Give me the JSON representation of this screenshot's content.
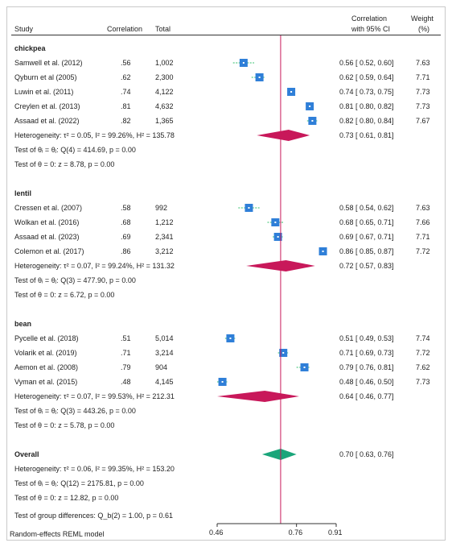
{
  "header": {
    "study": "Study",
    "correlation": "Correlation",
    "total": "Total",
    "ci_line1": "Correlation",
    "ci_line2": "with 95% CI",
    "weight_line1": "Weight",
    "weight_line2": "(%)"
  },
  "footer": "Random-effects REML model",
  "colors": {
    "marker": "#2f7fd8",
    "group_diamond": "#c8185a",
    "overall_diamond": "#1aa57a",
    "reference_line": "#c8185a",
    "ci_whisker": "#2fbf6a"
  },
  "chart_data": {
    "type": "forest",
    "xaxis": {
      "ticks": [
        "0.46",
        "0.76",
        "0.91"
      ],
      "tick_values": [
        0.46,
        0.76,
        0.91
      ]
    },
    "reference_value": 0.7,
    "groups": [
      {
        "name": "chickpea",
        "studies": [
          {
            "study": "Samwell et al. (2012)",
            "r": ".56",
            "total": "1,002",
            "ci_text": "0.56 [ 0.52, 0.60]",
            "weight": "7.63",
            "est": 0.56,
            "lo": 0.52,
            "hi": 0.6
          },
          {
            "study": "Qyburn et al (2005)",
            "r": ".62",
            "total": "2,300",
            "ci_text": "0.62 [ 0.59, 0.64]",
            "weight": "7.71",
            "est": 0.62,
            "lo": 0.59,
            "hi": 0.64
          },
          {
            "study": "Luwin et al. (2011)",
            "r": ".74",
            "total": "4,122",
            "ci_text": "0.74 [ 0.73, 0.75]",
            "weight": "7.73",
            "est": 0.74,
            "lo": 0.73,
            "hi": 0.75
          },
          {
            "study": "Creylen et al. (2013)",
            "r": ".81",
            "total": "4,632",
            "ci_text": "0.81 [ 0.80, 0.82]",
            "weight": "7.73",
            "est": 0.81,
            "lo": 0.8,
            "hi": 0.82
          },
          {
            "study": "Assaad et al. (2022)",
            "r": ".82",
            "total": "1,365",
            "ci_text": "0.82 [ 0.80, 0.84]",
            "weight": "7.67",
            "est": 0.82,
            "lo": 0.8,
            "hi": 0.84
          }
        ],
        "heterogeneity": "Heterogeneity: τ² = 0.05, I² = 99.26%, H² = 135.78",
        "pooled_text": "0.73 [ 0.61, 0.81]",
        "pooled": {
          "est": 0.73,
          "lo": 0.61,
          "hi": 0.81
        },
        "test_equal": "Test of θᵢ = θⱼ: Q(4) = 414.69, p = 0.00",
        "test_zero": "Test of θ = 0: z = 8.78, p = 0.00"
      },
      {
        "name": "lentil",
        "studies": [
          {
            "study": "Cressen et al. (2007)",
            "r": ".58",
            "total": "992",
            "ci_text": "0.58 [ 0.54, 0.62]",
            "weight": "7.63",
            "est": 0.58,
            "lo": 0.54,
            "hi": 0.62
          },
          {
            "study": "Wolkan et al. (2016)",
            "r": ".68",
            "total": "1,212",
            "ci_text": "0.68 [ 0.65, 0.71]",
            "weight": "7.66",
            "est": 0.68,
            "lo": 0.65,
            "hi": 0.71
          },
          {
            "study": "Assaad et al. (2023)",
            "r": ".69",
            "total": "2,341",
            "ci_text": "0.69 [ 0.67, 0.71]",
            "weight": "7.71",
            "est": 0.69,
            "lo": 0.67,
            "hi": 0.71
          },
          {
            "study": "Colemon et al. (2017)",
            "r": ".86",
            "total": "3,212",
            "ci_text": "0.86 [ 0.85, 0.87]",
            "weight": "7.72",
            "est": 0.86,
            "lo": 0.85,
            "hi": 0.87
          }
        ],
        "heterogeneity": "Heterogeneity: τ² = 0.07, I² = 99.24%, H² = 131.32",
        "pooled_text": "0.72 [ 0.57, 0.83]",
        "pooled": {
          "est": 0.72,
          "lo": 0.57,
          "hi": 0.83
        },
        "test_equal": "Test of θᵢ = θⱼ: Q(3) = 477.90, p = 0.00",
        "test_zero": "Test of θ = 0: z = 6.72, p = 0.00"
      },
      {
        "name": "bean",
        "studies": [
          {
            "study": "Pycelle et al. (2018)",
            "r": ".51",
            "total": "5,014",
            "ci_text": "0.51 [ 0.49, 0.53]",
            "weight": "7.74",
            "est": 0.51,
            "lo": 0.49,
            "hi": 0.53
          },
          {
            "study": "Volarik et al. (2019)",
            "r": ".71",
            "total": "3,214",
            "ci_text": "0.71 [ 0.69, 0.73]",
            "weight": "7.72",
            "est": 0.71,
            "lo": 0.69,
            "hi": 0.73
          },
          {
            "study": "Aemon et al. (2008)",
            "r": ".79",
            "total": "904",
            "ci_text": "0.79 [ 0.76, 0.81]",
            "weight": "7.62",
            "est": 0.79,
            "lo": 0.76,
            "hi": 0.81
          },
          {
            "study": "Vyman et al. (2015)",
            "r": ".48",
            "total": "4,145",
            "ci_text": "0.48 [ 0.46, 0.50]",
            "weight": "7.73",
            "est": 0.48,
            "lo": 0.46,
            "hi": 0.5
          }
        ],
        "heterogeneity": "Heterogeneity: τ² = 0.07, I² = 99.53%, H² = 212.31",
        "pooled_text": "0.64 [ 0.46, 0.77]",
        "pooled": {
          "est": 0.64,
          "lo": 0.46,
          "hi": 0.77
        },
        "test_equal": "Test of θᵢ = θⱼ: Q(3) = 443.26, p = 0.00",
        "test_zero": "Test of θ = 0: z = 5.78, p = 0.00"
      }
    ],
    "overall": {
      "name": "Overall",
      "heterogeneity": "Heterogeneity: τ² = 0.06, I² = 99.35%, H² = 153.20",
      "pooled_text": "0.70 [ 0.63, 0.76]",
      "pooled": {
        "est": 0.7,
        "lo": 0.63,
        "hi": 0.76
      },
      "test_equal": "Test of θᵢ = θⱼ: Q(12) = 2175.81, p = 0.00",
      "test_zero": "Test of θ = 0: z = 12.82, p = 0.00",
      "test_groups": "Test of group differences: Q_b(2) = 1.00, p = 0.61"
    }
  }
}
